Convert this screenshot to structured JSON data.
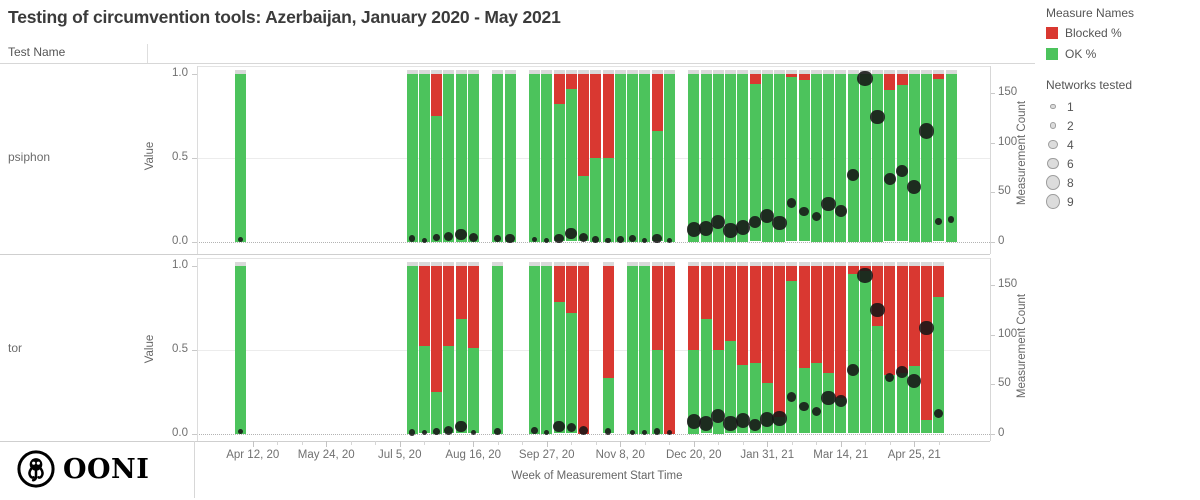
{
  "title": "Testing of circumvention tools: Azerbaijan, January 2020 - May 2021",
  "header": {
    "test_name_label": "Test Name"
  },
  "colors": {
    "blocked": "#d93831",
    "ok": "#4cc35c",
    "bar_cap": "#d9d9d9",
    "dot": "#161616"
  },
  "y_left": {
    "title": "Value",
    "ticks": [
      {
        "label": "1.0",
        "value": 1.0
      },
      {
        "label": "0.5",
        "value": 0.5
      },
      {
        "label": "0.0",
        "value": 0.0
      }
    ]
  },
  "y_right": {
    "title": "Measurement Count",
    "ticks": [
      {
        "label": "150",
        "value": 150
      },
      {
        "label": "100",
        "value": 100
      },
      {
        "label": "50",
        "value": 50
      },
      {
        "label": "0",
        "value": 0
      }
    ]
  },
  "x_axis": {
    "title": "Week of Measurement Start Time",
    "ticks": [
      {
        "label": "Apr 12, 20",
        "week_index": 1
      },
      {
        "label": "May 24, 20",
        "week_index": 7
      },
      {
        "label": "Jul 5, 20",
        "week_index": 13
      },
      {
        "label": "Aug 16, 20",
        "week_index": 19
      },
      {
        "label": "Sep 27, 20",
        "week_index": 25
      },
      {
        "label": "Nov 8, 20",
        "week_index": 31
      },
      {
        "label": "Dec 20, 20",
        "week_index": 37
      },
      {
        "label": "Jan 31, 21",
        "week_index": 43
      },
      {
        "label": "Mar 14, 21",
        "week_index": 49
      },
      {
        "label": "Apr 25, 21",
        "week_index": 55
      }
    ]
  },
  "legend": {
    "measures_title": "Measure Names",
    "measures": [
      {
        "label": "Blocked %",
        "color_key": "blocked"
      },
      {
        "label": "OK %",
        "color_key": "ok"
      }
    ],
    "networks_title": "Networks tested",
    "network_sizes": [
      1,
      2,
      4,
      6,
      8,
      9
    ]
  },
  "logo": {
    "text": "OONI",
    "icon": "octopus-icon"
  },
  "chart_data": [
    {
      "test": "psiphon",
      "type": "bar",
      "subtype": "stacked-percent-with-count-dots",
      "ylabel_left": "Value",
      "ylabel_right": "Measurement Count",
      "ylim_left": [
        0,
        1.0
      ],
      "ylim_right": [
        0,
        175
      ],
      "legend_series": [
        "Blocked %",
        "OK %"
      ],
      "bars": [
        {
          "i": 0,
          "week": "Apr 5, 20",
          "blocked": 0.0,
          "ok": 1.0,
          "count": 2,
          "networks": 1
        },
        {
          "i": 14,
          "week": "Jul 12, 20",
          "blocked": 0.0,
          "ok": 1.0,
          "count": 3,
          "networks": 2
        },
        {
          "i": 15,
          "week": "Jul 19, 20",
          "blocked": 0.0,
          "ok": 1.0,
          "count": 1,
          "networks": 1
        },
        {
          "i": 16,
          "week": "Jul 26, 20",
          "blocked": 0.25,
          "ok": 0.75,
          "count": 4,
          "networks": 2
        },
        {
          "i": 17,
          "week": "Aug 2, 20",
          "blocked": 0.0,
          "ok": 1.0,
          "count": 5,
          "networks": 4
        },
        {
          "i": 18,
          "week": "Aug 9, 20",
          "blocked": 0.0,
          "ok": 1.0,
          "count": 7,
          "networks": 6
        },
        {
          "i": 19,
          "week": "Aug 16, 20",
          "blocked": 0.0,
          "ok": 1.0,
          "count": 4,
          "networks": 4
        },
        {
          "i": 21,
          "week": "Aug 30, 20",
          "blocked": 0.0,
          "ok": 1.0,
          "count": 3,
          "networks": 2
        },
        {
          "i": 22,
          "week": "Sep 6, 20",
          "blocked": 0.0,
          "ok": 1.0,
          "count": 3,
          "networks": 4
        },
        {
          "i": 24,
          "week": "Sep 20, 20",
          "blocked": 0.0,
          "ok": 1.0,
          "count": 2,
          "networks": 1
        },
        {
          "i": 25,
          "week": "Sep 27, 20",
          "blocked": 0.0,
          "ok": 1.0,
          "count": 1,
          "networks": 1
        },
        {
          "i": 26,
          "week": "Oct 4, 20",
          "blocked": 0.18,
          "ok": 0.82,
          "count": 3,
          "networks": 4
        },
        {
          "i": 27,
          "week": "Oct 11, 20",
          "blocked": 0.09,
          "ok": 0.91,
          "count": 8,
          "networks": 6
        },
        {
          "i": 28,
          "week": "Oct 18, 20",
          "blocked": 0.61,
          "ok": 0.39,
          "count": 4,
          "networks": 4
        },
        {
          "i": 29,
          "week": "Oct 25, 20",
          "blocked": 0.5,
          "ok": 0.5,
          "count": 2,
          "networks": 2
        },
        {
          "i": 30,
          "week": "Nov 1, 20",
          "blocked": 0.5,
          "ok": 0.5,
          "count": 1,
          "networks": 1
        },
        {
          "i": 31,
          "week": "Nov 8, 20",
          "blocked": 0.0,
          "ok": 1.0,
          "count": 2,
          "networks": 2
        },
        {
          "i": 32,
          "week": "Nov 15, 20",
          "blocked": 0.0,
          "ok": 1.0,
          "count": 3,
          "networks": 2
        },
        {
          "i": 33,
          "week": "Nov 22, 20",
          "blocked": 0.0,
          "ok": 1.0,
          "count": 1,
          "networks": 1
        },
        {
          "i": 34,
          "week": "Nov 29, 20",
          "blocked": 0.34,
          "ok": 0.66,
          "count": 3,
          "networks": 4
        },
        {
          "i": 35,
          "week": "Dec 6, 20",
          "blocked": 0.0,
          "ok": 1.0,
          "count": 1,
          "networks": 1
        },
        {
          "i": 37,
          "week": "Dec 20, 20",
          "blocked": 0.0,
          "ok": 1.0,
          "count": 12,
          "networks": 8
        },
        {
          "i": 38,
          "week": "Dec 27, 20",
          "blocked": 0.0,
          "ok": 1.0,
          "count": 13,
          "networks": 8
        },
        {
          "i": 39,
          "week": "Jan 3, 21",
          "blocked": 0.0,
          "ok": 1.0,
          "count": 20,
          "networks": 8
        },
        {
          "i": 40,
          "week": "Jan 10, 21",
          "blocked": 0.0,
          "ok": 1.0,
          "count": 11,
          "networks": 8
        },
        {
          "i": 41,
          "week": "Jan 17, 21",
          "blocked": 0.0,
          "ok": 1.0,
          "count": 14,
          "networks": 8
        },
        {
          "i": 42,
          "week": "Jan 24, 21",
          "blocked": 0.06,
          "ok": 0.94,
          "count": 20,
          "networks": 6
        },
        {
          "i": 43,
          "week": "Jan 31, 21",
          "blocked": 0.0,
          "ok": 1.0,
          "count": 26,
          "networks": 8
        },
        {
          "i": 44,
          "week": "Feb 7, 21",
          "blocked": 0.0,
          "ok": 1.0,
          "count": 19,
          "networks": 8
        },
        {
          "i": 45,
          "week": "Feb 14, 21",
          "blocked": 0.02,
          "ok": 0.98,
          "count": 39,
          "networks": 4
        },
        {
          "i": 46,
          "week": "Feb 21, 21",
          "blocked": 0.04,
          "ok": 0.96,
          "count": 30,
          "networks": 4
        },
        {
          "i": 47,
          "week": "Feb 28, 21",
          "blocked": 0.0,
          "ok": 1.0,
          "count": 25,
          "networks": 4
        },
        {
          "i": 48,
          "week": "Mar 7, 21",
          "blocked": 0.0,
          "ok": 1.0,
          "count": 38,
          "networks": 8
        },
        {
          "i": 49,
          "week": "Mar 14, 21",
          "blocked": 0.0,
          "ok": 1.0,
          "count": 31,
          "networks": 6
        },
        {
          "i": 50,
          "week": "Mar 21, 21",
          "blocked": 0.0,
          "ok": 1.0,
          "count": 67,
          "networks": 6
        },
        {
          "i": 51,
          "week": "Mar 28, 21",
          "blocked": 0.0,
          "ok": 1.0,
          "count": 165,
          "networks": 9
        },
        {
          "i": 52,
          "week": "Apr 4, 21",
          "blocked": 0.0,
          "ok": 1.0,
          "count": 126,
          "networks": 8
        },
        {
          "i": 53,
          "week": "Apr 11, 21",
          "blocked": 0.1,
          "ok": 0.9,
          "count": 63,
          "networks": 6
        },
        {
          "i": 54,
          "week": "Apr 18, 21",
          "blocked": 0.07,
          "ok": 0.93,
          "count": 71,
          "networks": 6
        },
        {
          "i": 55,
          "week": "Apr 25, 21",
          "blocked": 0.0,
          "ok": 1.0,
          "count": 55,
          "networks": 8
        },
        {
          "i": 56,
          "week": "May 2, 21",
          "blocked": 0.0,
          "ok": 1.0,
          "count": 112,
          "networks": 9
        },
        {
          "i": 57,
          "week": "May 9, 21",
          "blocked": 0.03,
          "ok": 0.97,
          "count": 20,
          "networks": 2
        },
        {
          "i": 58,
          "week": "May 16, 21",
          "blocked": 0.0,
          "ok": 1.0,
          "count": 22,
          "networks": 2
        }
      ]
    },
    {
      "test": "tor",
      "type": "bar",
      "subtype": "stacked-percent-with-count-dots",
      "ylabel_left": "Value",
      "ylabel_right": "Measurement Count",
      "ylim_left": [
        0,
        1.0
      ],
      "ylim_right": [
        0,
        175
      ],
      "legend_series": [
        "Blocked %",
        "OK %"
      ],
      "bars": [
        {
          "i": 0,
          "week": "Apr 5, 20",
          "blocked": 0.0,
          "ok": 1.0,
          "count": 2,
          "networks": 1
        },
        {
          "i": 14,
          "week": "Jul 12, 20",
          "blocked": 0.0,
          "ok": 1.0,
          "count": 1,
          "networks": 2
        },
        {
          "i": 15,
          "week": "Jul 19, 20",
          "blocked": 0.48,
          "ok": 0.52,
          "count": 1,
          "networks": 1
        },
        {
          "i": 16,
          "week": "Jul 26, 20",
          "blocked": 0.75,
          "ok": 0.25,
          "count": 2,
          "networks": 2
        },
        {
          "i": 17,
          "week": "Aug 2, 20",
          "blocked": 0.48,
          "ok": 0.52,
          "count": 3,
          "networks": 4
        },
        {
          "i": 18,
          "week": "Aug 9, 20",
          "blocked": 0.32,
          "ok": 0.68,
          "count": 7,
          "networks": 6
        },
        {
          "i": 19,
          "week": "Aug 16, 20",
          "blocked": 0.49,
          "ok": 0.51,
          "count": 1,
          "networks": 1
        },
        {
          "i": 21,
          "week": "Aug 30, 20",
          "blocked": 0.0,
          "ok": 1.0,
          "count": 2,
          "networks": 2
        },
        {
          "i": 24,
          "week": "Sep 20, 20",
          "blocked": 0.0,
          "ok": 1.0,
          "count": 3,
          "networks": 2
        },
        {
          "i": 25,
          "week": "Sep 27, 20",
          "blocked": 0.0,
          "ok": 1.0,
          "count": 1,
          "networks": 1
        },
        {
          "i": 26,
          "week": "Oct 4, 20",
          "blocked": 0.22,
          "ok": 0.78,
          "count": 7,
          "networks": 6
        },
        {
          "i": 27,
          "week": "Oct 11, 20",
          "blocked": 0.28,
          "ok": 0.72,
          "count": 6,
          "networks": 4
        },
        {
          "i": 28,
          "week": "Oct 18, 20",
          "blocked": 1.0,
          "ok": 0.0,
          "count": 3,
          "networks": 4
        },
        {
          "i": 30,
          "week": "Nov 1, 20",
          "blocked": 0.67,
          "ok": 0.33,
          "count": 2,
          "networks": 2
        },
        {
          "i": 32,
          "week": "Nov 15, 20",
          "blocked": 0.0,
          "ok": 1.0,
          "count": 1,
          "networks": 1
        },
        {
          "i": 33,
          "week": "Nov 22, 20",
          "blocked": 0.0,
          "ok": 1.0,
          "count": 1,
          "networks": 1
        },
        {
          "i": 34,
          "week": "Nov 29, 20",
          "blocked": 0.5,
          "ok": 0.5,
          "count": 2,
          "networks": 2
        },
        {
          "i": 35,
          "week": "Dec 6, 20",
          "blocked": 1.0,
          "ok": 0.0,
          "count": 1,
          "networks": 1
        },
        {
          "i": 37,
          "week": "Dec 20, 20",
          "blocked": 0.5,
          "ok": 0.5,
          "count": 12,
          "networks": 8
        },
        {
          "i": 38,
          "week": "Dec 27, 20",
          "blocked": 0.32,
          "ok": 0.68,
          "count": 10,
          "networks": 8
        },
        {
          "i": 39,
          "week": "Jan 3, 21",
          "blocked": 0.5,
          "ok": 0.5,
          "count": 18,
          "networks": 8
        },
        {
          "i": 40,
          "week": "Jan 10, 21",
          "blocked": 0.45,
          "ok": 0.55,
          "count": 10,
          "networks": 8
        },
        {
          "i": 41,
          "week": "Jan 17, 21",
          "blocked": 0.59,
          "ok": 0.41,
          "count": 13,
          "networks": 8
        },
        {
          "i": 42,
          "week": "Jan 24, 21",
          "blocked": 0.58,
          "ok": 0.42,
          "count": 9,
          "networks": 6
        },
        {
          "i": 43,
          "week": "Jan 31, 21",
          "blocked": 0.7,
          "ok": 0.3,
          "count": 14,
          "networks": 8
        },
        {
          "i": 44,
          "week": "Feb 7, 21",
          "blocked": 0.9,
          "ok": 0.1,
          "count": 15,
          "networks": 8
        },
        {
          "i": 45,
          "week": "Feb 14, 21",
          "blocked": 0.09,
          "ok": 0.91,
          "count": 37,
          "networks": 4
        },
        {
          "i": 46,
          "week": "Feb 21, 21",
          "blocked": 0.61,
          "ok": 0.39,
          "count": 27,
          "networks": 4
        },
        {
          "i": 47,
          "week": "Feb 28, 21",
          "blocked": 0.58,
          "ok": 0.42,
          "count": 22,
          "networks": 4
        },
        {
          "i": 48,
          "week": "Mar 7, 21",
          "blocked": 0.64,
          "ok": 0.36,
          "count": 36,
          "networks": 8
        },
        {
          "i": 49,
          "week": "Mar 14, 21",
          "blocked": 0.79,
          "ok": 0.21,
          "count": 33,
          "networks": 6
        },
        {
          "i": 50,
          "week": "Mar 21, 21",
          "blocked": 0.05,
          "ok": 0.95,
          "count": 64,
          "networks": 6
        },
        {
          "i": 51,
          "week": "Mar 28, 21",
          "blocked": 0.03,
          "ok": 0.97,
          "count": 160,
          "networks": 9
        },
        {
          "i": 52,
          "week": "Apr 4, 21",
          "blocked": 0.36,
          "ok": 0.64,
          "count": 125,
          "networks": 8
        },
        {
          "i": 53,
          "week": "Apr 11, 21",
          "blocked": 0.65,
          "ok": 0.35,
          "count": 57,
          "networks": 4
        },
        {
          "i": 54,
          "week": "Apr 18, 21",
          "blocked": 0.64,
          "ok": 0.36,
          "count": 62,
          "networks": 6
        },
        {
          "i": 55,
          "week": "Apr 25, 21",
          "blocked": 0.6,
          "ok": 0.4,
          "count": 53,
          "networks": 8
        },
        {
          "i": 56,
          "week": "May 2, 21",
          "blocked": 0.92,
          "ok": 0.08,
          "count": 107,
          "networks": 8
        },
        {
          "i": 57,
          "week": "May 9, 21",
          "blocked": 0.19,
          "ok": 0.81,
          "count": 20,
          "networks": 4
        }
      ]
    }
  ]
}
